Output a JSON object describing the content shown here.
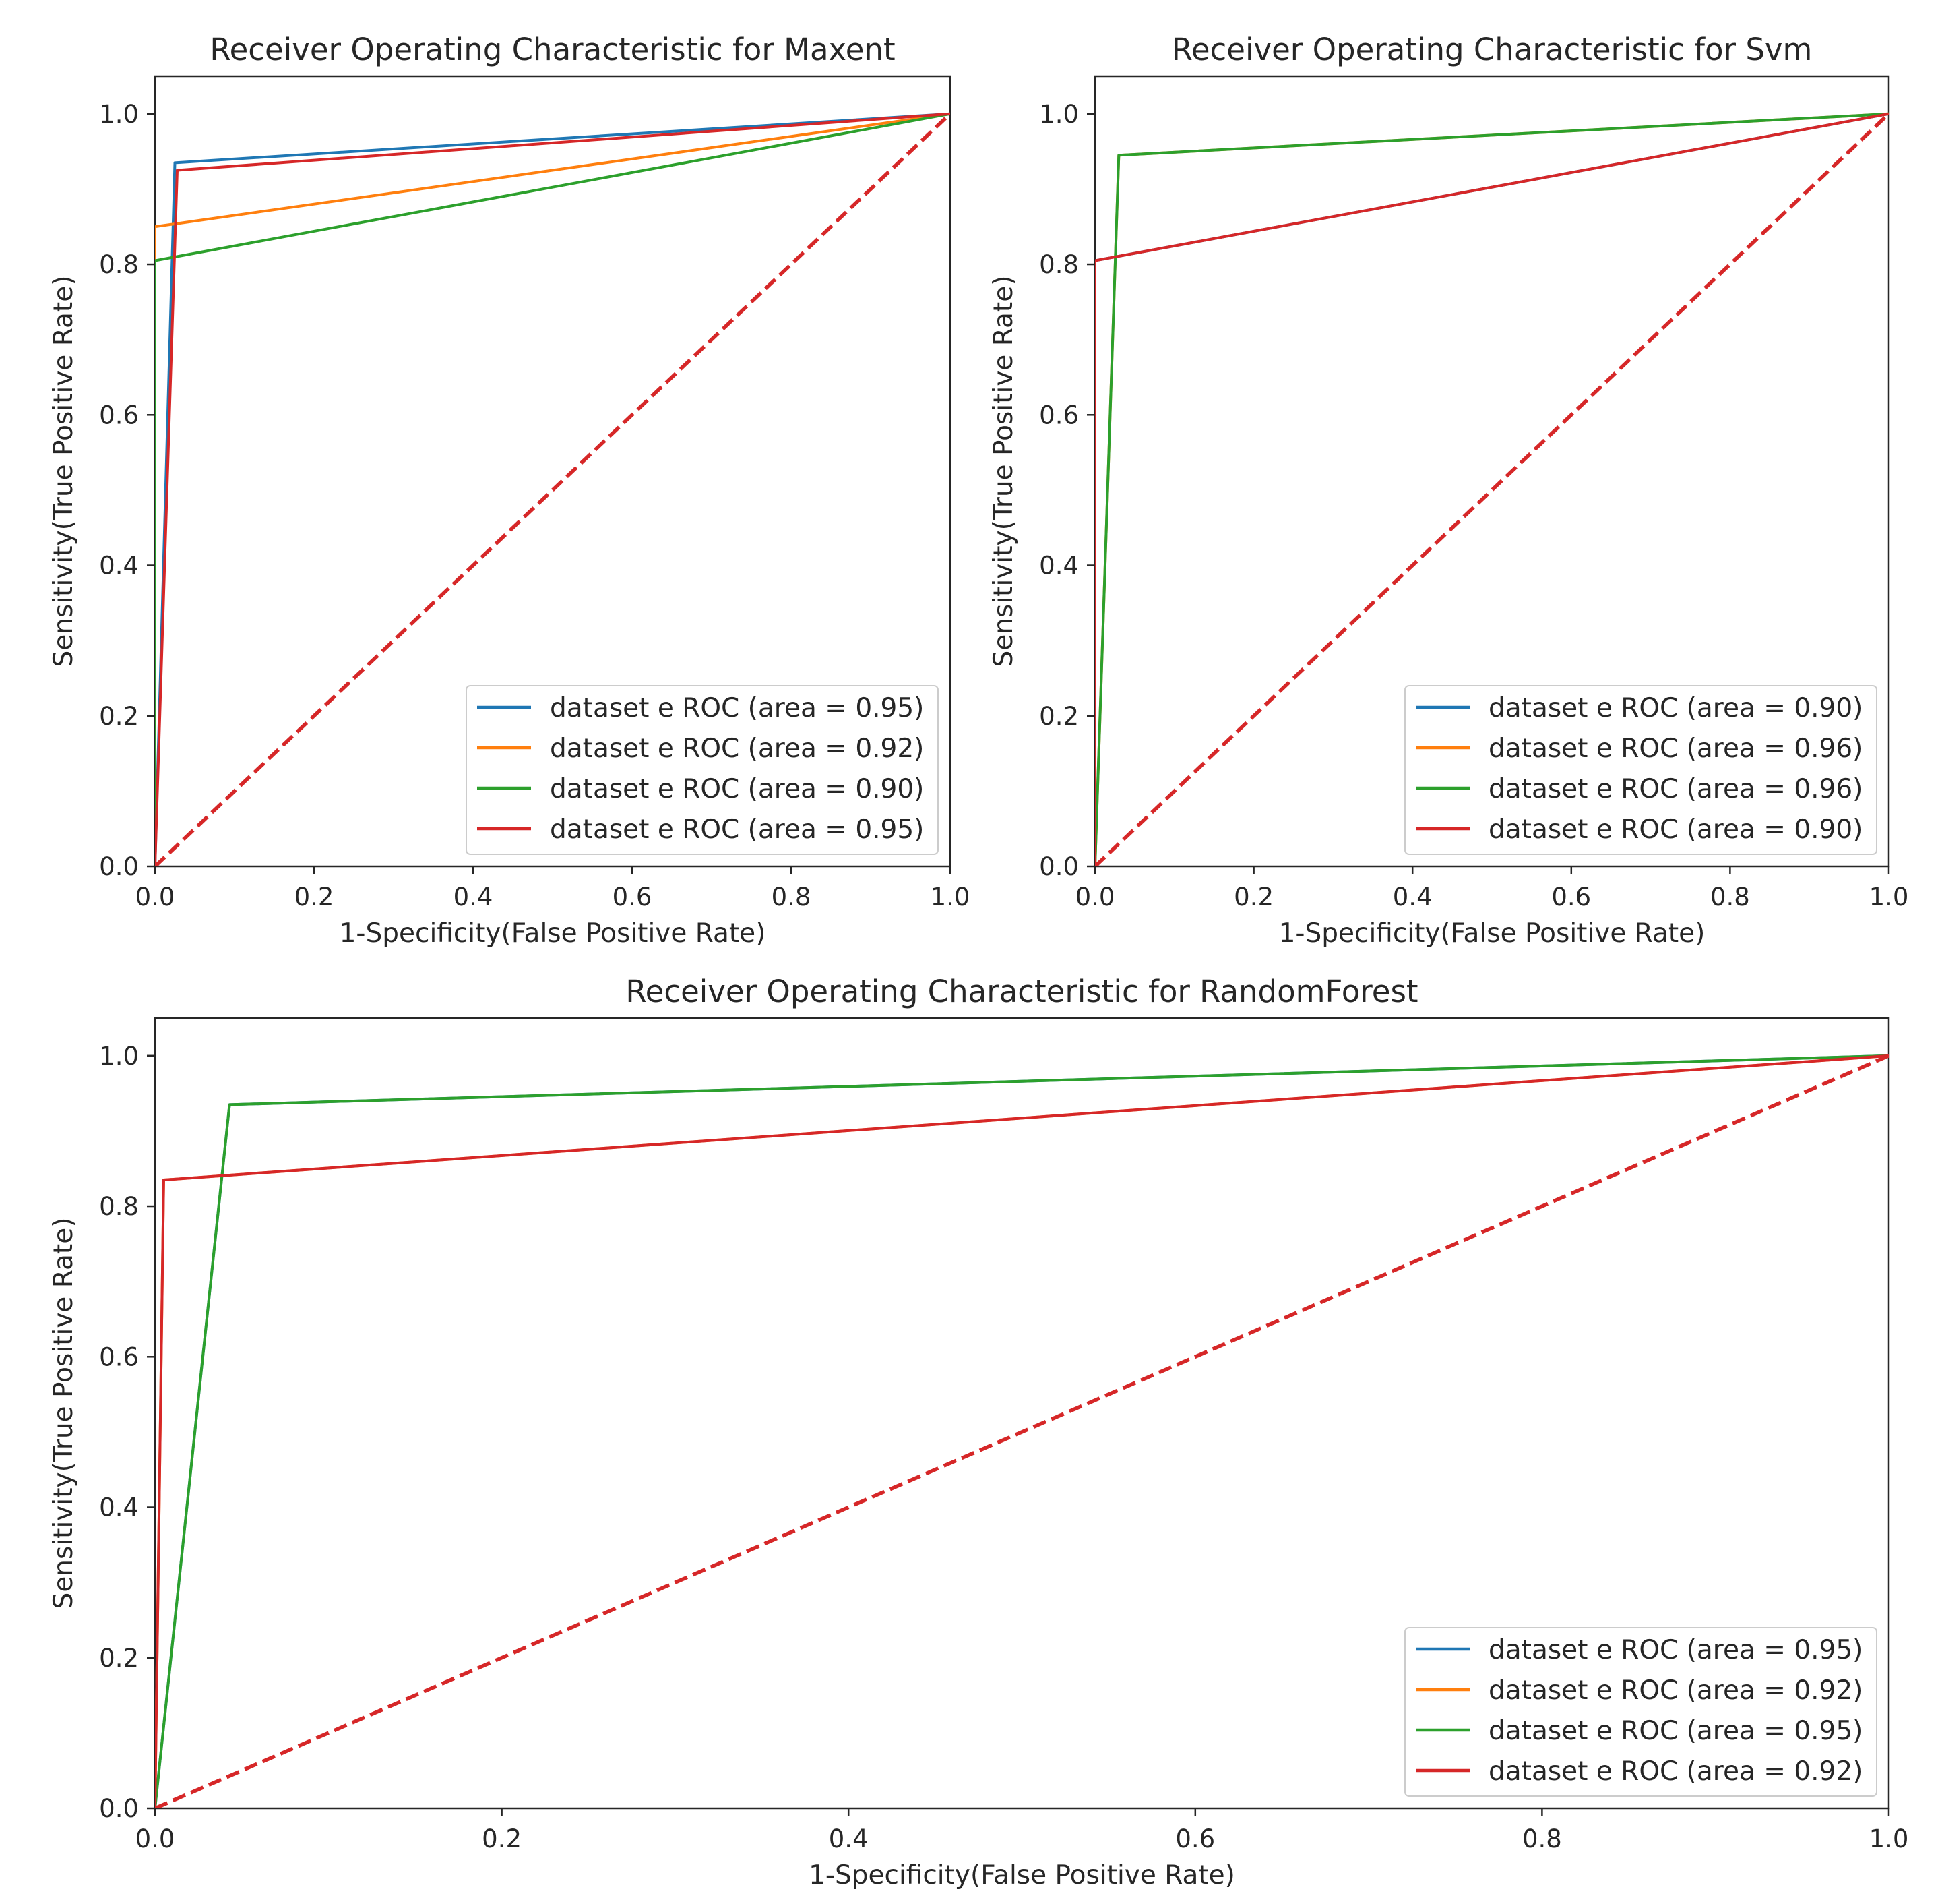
{
  "colors": {
    "blue": "#1f77b4",
    "orange": "#ff7f0e",
    "green": "#2ca02c",
    "red": "#d62728",
    "diagonal": "#d62728",
    "axis": "#262626",
    "legend_border": "#cccccc"
  },
  "chart_data": [
    {
      "id": "maxent",
      "type": "line",
      "title": "Receiver Operating Characteristic for Maxent",
      "xlabel": "1-Specificity(False Positive Rate)",
      "ylabel": "Sensitivity(True Positive Rate)",
      "xlim": [
        0,
        1
      ],
      "ylim": [
        0,
        1.05
      ],
      "xticks": [
        "0.0",
        "0.2",
        "0.4",
        "0.6",
        "0.8",
        "1.0"
      ],
      "yticks": [
        "0.0",
        "0.2",
        "0.4",
        "0.6",
        "0.8",
        "1.0"
      ],
      "legend_position": "lower-right",
      "diagonal": true,
      "series": [
        {
          "name": "dataset e ROC (area = 0.95)",
          "color": "blue",
          "x": [
            0,
            0.025,
            1
          ],
          "y": [
            0,
            0.935,
            1
          ]
        },
        {
          "name": "dataset e ROC (area = 0.92)",
          "color": "orange",
          "x": [
            0,
            0,
            1
          ],
          "y": [
            0,
            0.85,
            1
          ]
        },
        {
          "name": "dataset e ROC (area = 0.90)",
          "color": "green",
          "x": [
            0,
            0,
            1
          ],
          "y": [
            0,
            0.805,
            1
          ]
        },
        {
          "name": "dataset e ROC (area = 0.95)",
          "color": "red",
          "x": [
            0,
            0.028,
            1
          ],
          "y": [
            0,
            0.925,
            1
          ]
        }
      ]
    },
    {
      "id": "svm",
      "type": "line",
      "title": "Receiver Operating Characteristic for Svm",
      "xlabel": "1-Specificity(False Positive Rate)",
      "ylabel": "Sensitivity(True Positive Rate)",
      "xlim": [
        0,
        1
      ],
      "ylim": [
        0,
        1.05
      ],
      "xticks": [
        "0.0",
        "0.2",
        "0.4",
        "0.6",
        "0.8",
        "1.0"
      ],
      "yticks": [
        "0.0",
        "0.2",
        "0.4",
        "0.6",
        "0.8",
        "1.0"
      ],
      "legend_position": "lower-right",
      "diagonal": true,
      "series": [
        {
          "name": "dataset e ROC (area = 0.90)",
          "color": "blue",
          "x": [
            0,
            0,
            1
          ],
          "y": [
            0,
            0.805,
            1
          ]
        },
        {
          "name": "dataset e ROC (area = 0.96)",
          "color": "orange",
          "x": [
            0,
            0.03,
            1
          ],
          "y": [
            0,
            0.945,
            1
          ]
        },
        {
          "name": "dataset e ROC (area = 0.96)",
          "color": "green",
          "x": [
            0,
            0.03,
            1
          ],
          "y": [
            0,
            0.945,
            1
          ]
        },
        {
          "name": "dataset e ROC (area = 0.90)",
          "color": "red",
          "x": [
            0,
            0,
            1
          ],
          "y": [
            0,
            0.805,
            1
          ]
        }
      ]
    },
    {
      "id": "randomforest",
      "type": "line",
      "title": "Receiver Operating Characteristic for RandomForest",
      "xlabel": "1-Specificity(False Positive Rate)",
      "ylabel": "Sensitivity(True Positive Rate)",
      "xlim": [
        0,
        1
      ],
      "ylim": [
        0,
        1.05
      ],
      "xticks": [
        "0.0",
        "0.2",
        "0.4",
        "0.6",
        "0.8",
        "1.0"
      ],
      "yticks": [
        "0.0",
        "0.2",
        "0.4",
        "0.6",
        "0.8",
        "1.0"
      ],
      "legend_position": "lower-right",
      "diagonal": true,
      "series": [
        {
          "name": "dataset e ROC (area = 0.95)",
          "color": "blue",
          "x": [
            0,
            0.043,
            1
          ],
          "y": [
            0,
            0.935,
            1
          ]
        },
        {
          "name": "dataset e ROC (area = 0.92)",
          "color": "orange",
          "x": [
            0,
            0.005,
            1
          ],
          "y": [
            0,
            0.835,
            1
          ]
        },
        {
          "name": "dataset e ROC (area = 0.95)",
          "color": "green",
          "x": [
            0,
            0.043,
            1
          ],
          "y": [
            0,
            0.935,
            1
          ]
        },
        {
          "name": "dataset e ROC (area = 0.92)",
          "color": "red",
          "x": [
            0,
            0.005,
            1
          ],
          "y": [
            0,
            0.835,
            1
          ]
        }
      ]
    }
  ]
}
